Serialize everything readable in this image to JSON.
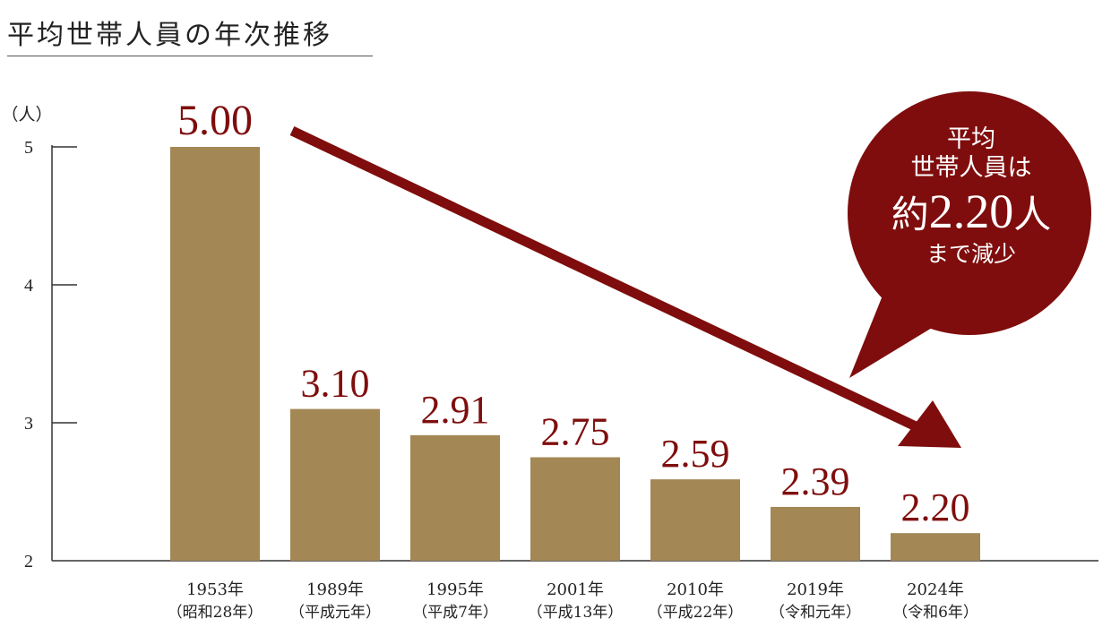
{
  "title": "平均世帯人員の年次推移",
  "callout": {
    "line1": "平均",
    "line2": "世帯人員は",
    "prefix": "約",
    "value": "2.20",
    "suffix": "人",
    "line4": "まで減少"
  },
  "colors": {
    "bar": "#a38754",
    "accent": "#7f0d0d",
    "axis": "#333333"
  },
  "chart_data": {
    "type": "bar",
    "title": "平均世帯人員の年次推移",
    "ylabel": "（人）",
    "ylim": [
      2,
      5
    ],
    "yticks": [
      2,
      3,
      4,
      5
    ],
    "categories": [
      [
        "1953年",
        "（昭和28年）"
      ],
      [
        "1989年",
        "（平成元年）"
      ],
      [
        "1995年",
        "（平成7年）"
      ],
      [
        "2001年",
        "（平成13年）"
      ],
      [
        "2010年",
        "（平成22年）"
      ],
      [
        "2019年",
        "（令和元年）"
      ],
      [
        "2024年",
        "（令和6年）"
      ]
    ],
    "values": [
      5.0,
      3.1,
      2.91,
      2.75,
      2.59,
      2.39,
      2.2
    ],
    "value_labels": [
      "5.00",
      "3.10",
      "2.91",
      "2.75",
      "2.59",
      "2.39",
      "2.20"
    ],
    "grid": false
  }
}
